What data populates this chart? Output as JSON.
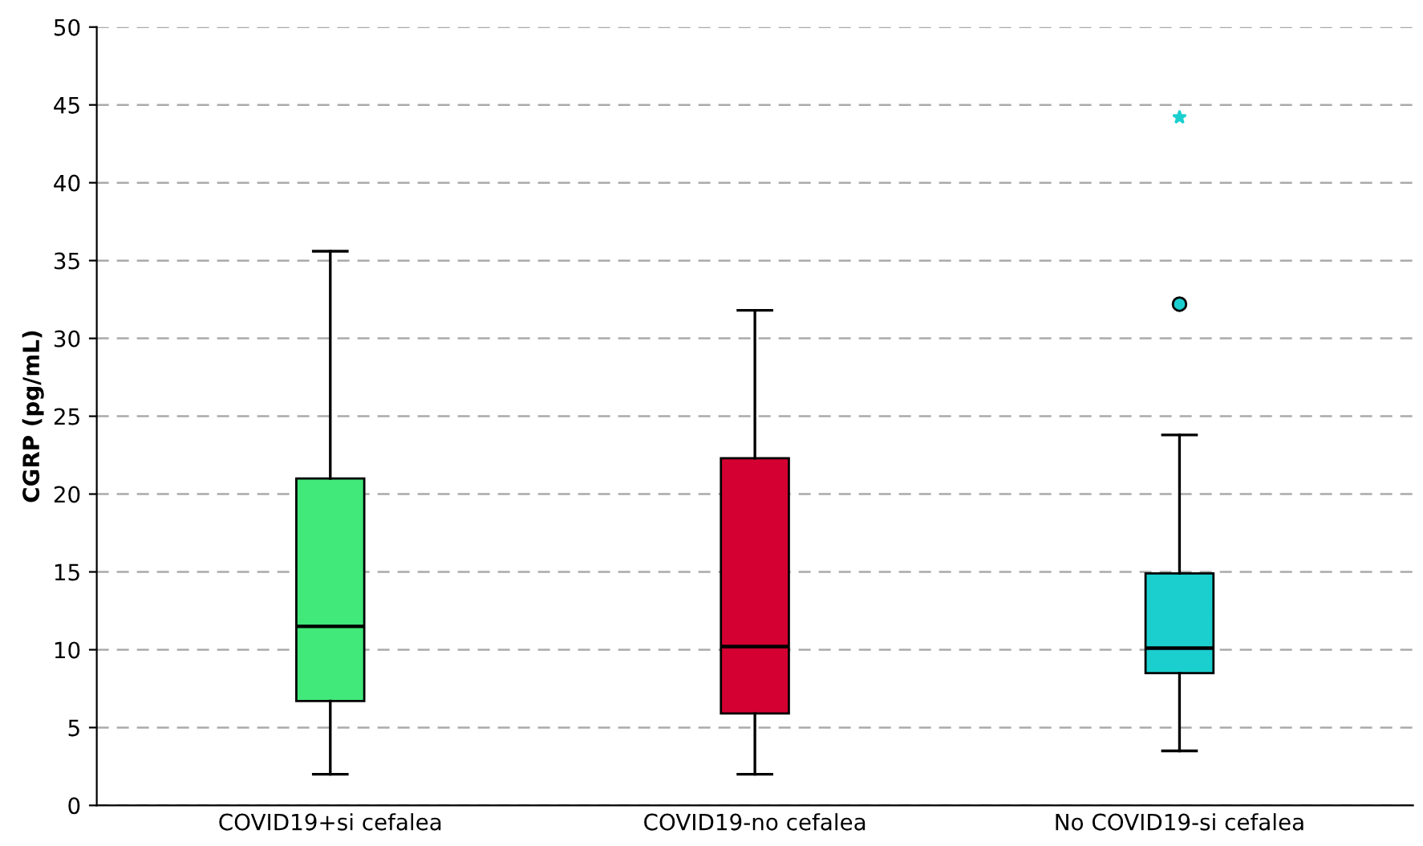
{
  "chart_data": {
    "type": "box",
    "ylabel": "CGRP (pg/mL)",
    "categories": [
      "COVID19+si cefalea",
      "COVID19-no cefalea",
      "No COVID19-si cefalea"
    ],
    "colors": [
      "#41e87a",
      "#d40032",
      "#1ccfcf"
    ],
    "boxes": [
      {
        "low": 2.0,
        "q1": 6.7,
        "median": 11.5,
        "q3": 21.0,
        "high": 35.6
      },
      {
        "low": 2.0,
        "q1": 5.9,
        "median": 10.2,
        "q3": 22.3,
        "high": 31.8
      },
      {
        "low": 3.5,
        "q1": 8.5,
        "median": 10.1,
        "q3": 14.9,
        "high": 23.8,
        "outliers": [
          32.2,
          44.2
        ]
      }
    ],
    "ylim": [
      0,
      50
    ],
    "yticks": [
      0,
      5,
      10,
      15,
      20,
      25,
      30,
      35,
      40,
      45,
      50
    ],
    "grid": "y"
  }
}
